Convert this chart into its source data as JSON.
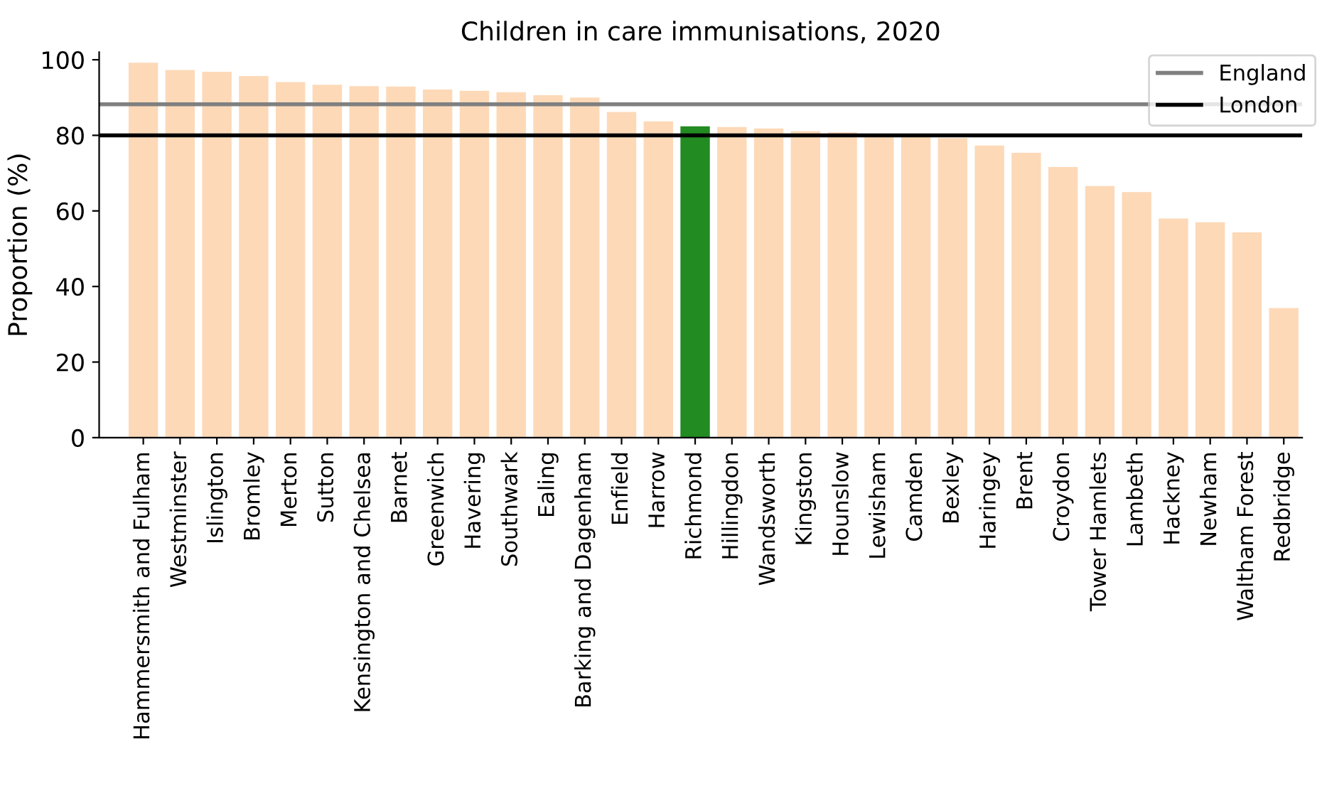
{
  "chart_data": {
    "type": "bar",
    "title": "Children in care immunisations, 2020",
    "ylabel": "Proportion (%)",
    "categories": [
      "Hammersmith and Fulham",
      "Westminster",
      "Islington",
      "Bromley",
      "Merton",
      "Sutton",
      "Kensington and Chelsea",
      "Barnet",
      "Greenwich",
      "Havering",
      "Southwark",
      "Ealing",
      "Barking and Dagenham",
      "Enfield",
      "Harrow",
      "Richmond",
      "Hillingdon",
      "Wandsworth",
      "Kingston",
      "Hounslow",
      "Lewisham",
      "Camden",
      "Bexley",
      "Haringey",
      "Brent",
      "Croydon",
      "Tower Hamlets",
      "Lambeth",
      "Hackney",
      "Newham",
      "Waltham Forest",
      "Redbridge"
    ],
    "values": [
      99.2,
      97.3,
      96.8,
      95.7,
      94.1,
      93.4,
      93.0,
      92.9,
      92.1,
      91.8,
      91.4,
      90.6,
      90.0,
      86.2,
      83.7,
      82.4,
      82.2,
      81.8,
      81.1,
      80.8,
      80.4,
      80.1,
      79.3,
      77.3,
      75.4,
      71.6,
      66.6,
      65.0,
      58.0,
      57.0,
      54.3,
      34.3
    ],
    "colors": [
      "#fdd9b8",
      "#fdd9b8",
      "#fdd9b8",
      "#fdd9b8",
      "#fdd9b8",
      "#fdd9b8",
      "#fdd9b8",
      "#fdd9b8",
      "#fdd9b8",
      "#fdd9b8",
      "#fdd9b8",
      "#fdd9b8",
      "#fdd9b8",
      "#fdd9b8",
      "#fdd9b8",
      "#228b22",
      "#fdd9b8",
      "#fdd9b8",
      "#fdd9b8",
      "#fdd9b8",
      "#fdd9b8",
      "#fdd9b8",
      "#fdd9b8",
      "#fdd9b8",
      "#fdd9b8",
      "#fdd9b8",
      "#fdd9b8",
      "#fdd9b8",
      "#fdd9b8",
      "#fdd9b8",
      "#fdd9b8",
      "#fdd9b8"
    ],
    "ylim": [
      0,
      102
    ],
    "yticks": [
      0,
      20,
      40,
      60,
      80,
      100
    ],
    "ref_lines": [
      {
        "axis": "y",
        "value": 88.2,
        "label": "England",
        "color": "#808080"
      },
      {
        "axis": "y",
        "value": 80,
        "label": "London",
        "color": "#000000"
      }
    ],
    "legend": "top right",
    "grid": false
  }
}
